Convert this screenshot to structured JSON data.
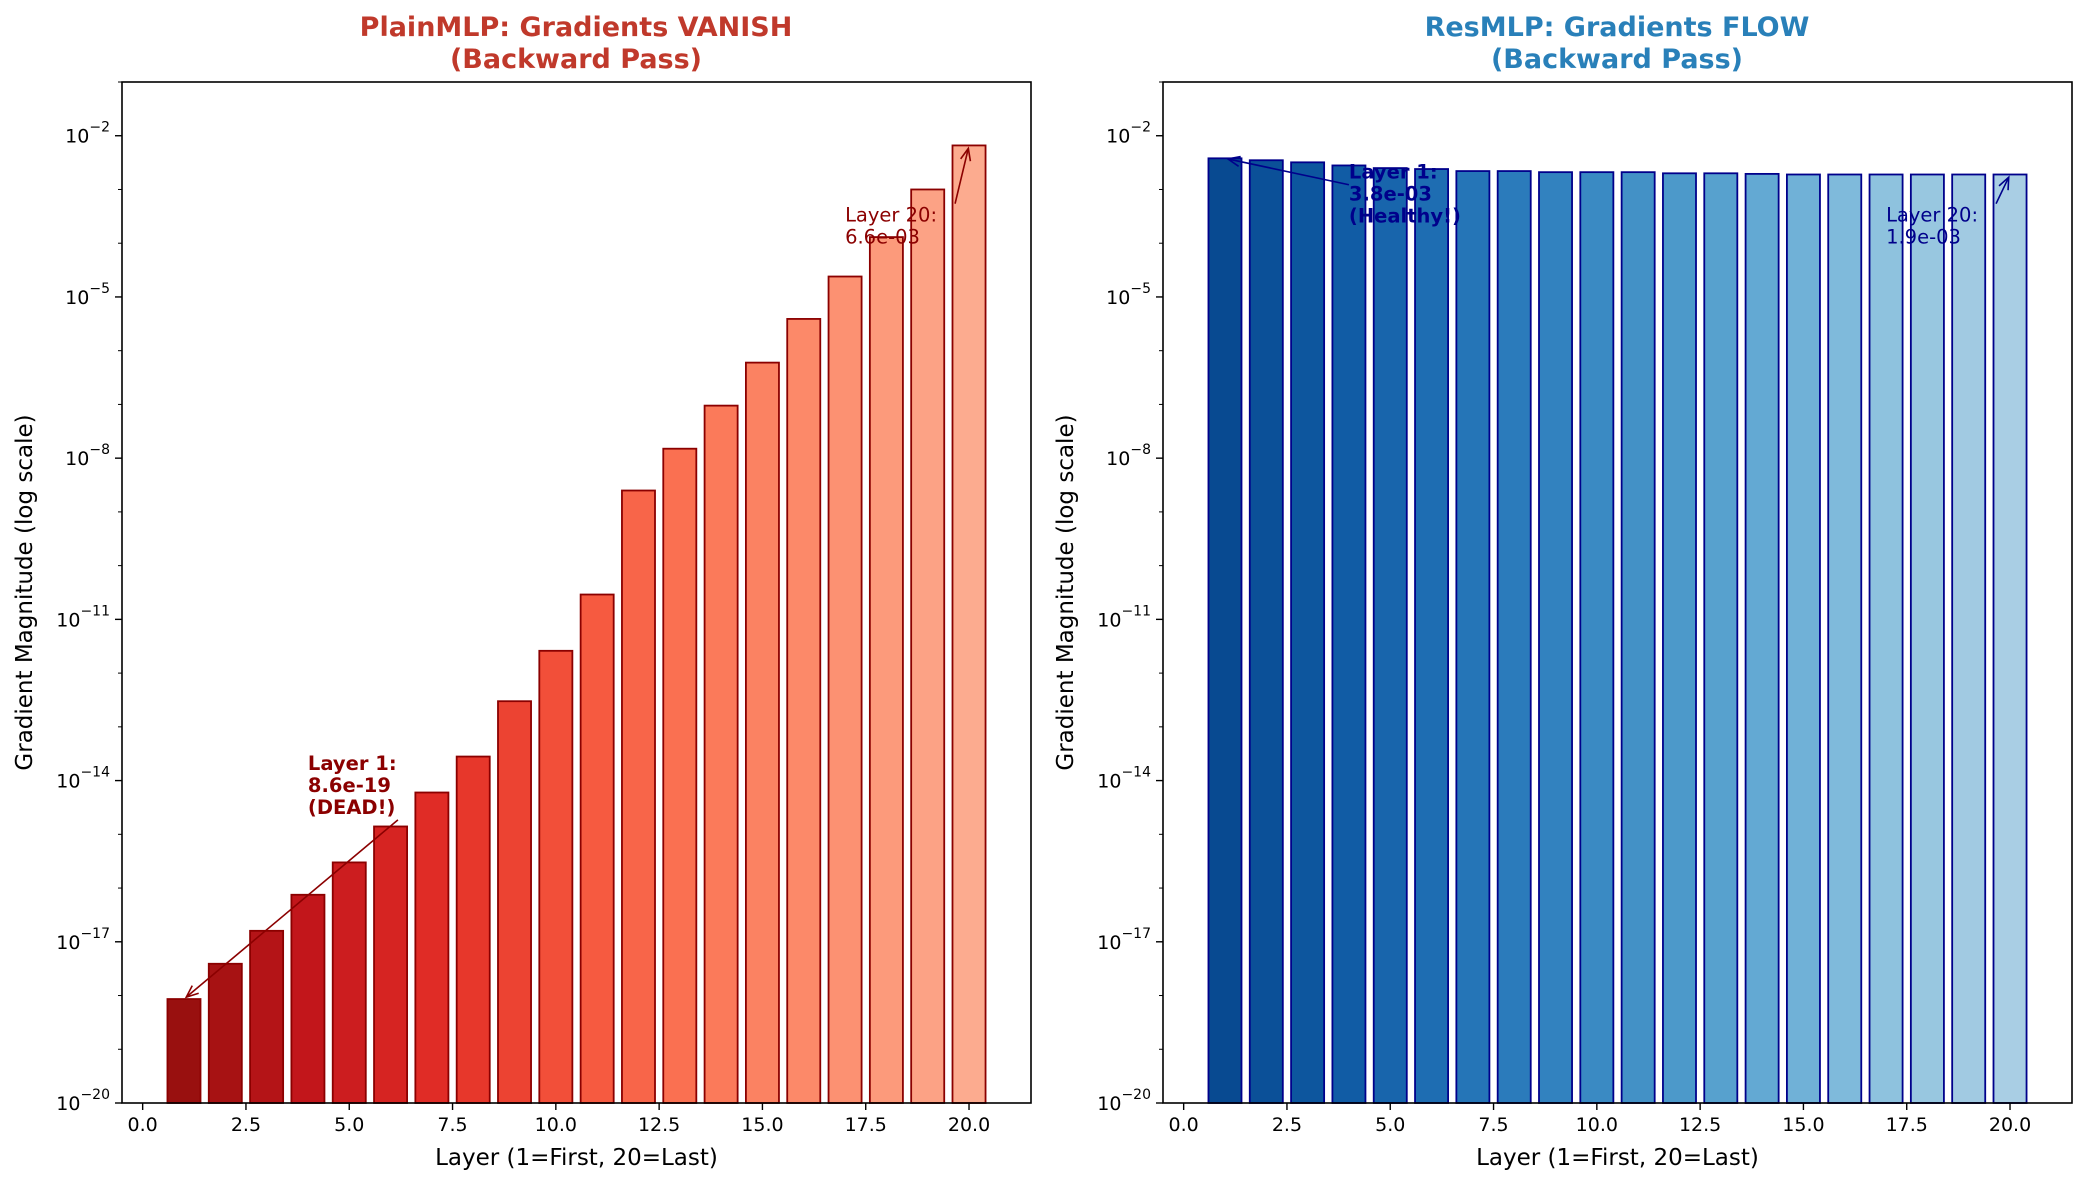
{
  "chart_data": [
    {
      "type": "bar",
      "title_line1": "PlainMLP: Gradients VANISH",
      "title_line2": "(Backward Pass)",
      "title_color": "#c0392b",
      "xlabel": "Layer (1=First, 20=Last)",
      "ylabel": "Gradient Magnitude (log scale)",
      "yscale": "log",
      "xlim": [
        -0.5,
        21.5
      ],
      "ylim_exp": [
        -20,
        -1
      ],
      "x_ticks": [
        "0.0",
        "2.5",
        "5.0",
        "7.5",
        "10.0",
        "12.5",
        "15.0",
        "17.5",
        "20.0"
      ],
      "y_tick_exponents": [
        "-20",
        "-17",
        "-14",
        "-11",
        "-8",
        "-5",
        "-2"
      ],
      "edge_color": "#8b0000",
      "palette": "reds",
      "x": [
        1,
        2,
        3,
        4,
        5,
        6,
        7,
        8,
        9,
        10,
        11,
        12,
        13,
        14,
        15,
        16,
        17,
        18,
        19,
        20
      ],
      "values": [
        8.6e-19,
        3.9e-18,
        1.6e-17,
        7.5e-17,
        3e-16,
        1.4e-15,
        6e-15,
        2.8e-14,
        3e-13,
        2.6e-12,
        2.9e-11,
        2.5e-09,
        1.5e-08,
        9.5e-08,
        6e-07,
        3.9e-06,
        2.4e-05,
        0.00013,
        0.001,
        0.0066
      ],
      "annotations": [
        {
          "lines": [
            "Layer 1:",
            "8.6e-19",
            "(DEAD!)"
          ],
          "bold": true,
          "color": "#8b0000",
          "target_layer": 1,
          "target_value": 8.6e-19,
          "text_layer": 4.0,
          "text_exp": -13.8
        },
        {
          "lines": [
            "Layer 20:",
            "6.6e-03"
          ],
          "bold": false,
          "color": "#8b0000",
          "target_layer": 20,
          "target_value": 0.0066,
          "text_layer": 17.0,
          "text_exp": -3.6
        }
      ]
    },
    {
      "type": "bar",
      "title_line1": "ResMLP: Gradients FLOW",
      "title_line2": "(Backward Pass)",
      "title_color": "#2980b9",
      "xlabel": "Layer (1=First, 20=Last)",
      "ylabel": "Gradient Magnitude (log scale)",
      "yscale": "log",
      "xlim": [
        -0.5,
        21.5
      ],
      "ylim_exp": [
        -20,
        -1
      ],
      "x_ticks": [
        "0.0",
        "2.5",
        "5.0",
        "7.5",
        "10.0",
        "12.5",
        "15.0",
        "17.5",
        "20.0"
      ],
      "y_tick_exponents": [
        "-20",
        "-17",
        "-14",
        "-11",
        "-8",
        "-5",
        "-2"
      ],
      "edge_color": "#00008b",
      "palette": "blues",
      "x": [
        1,
        2,
        3,
        4,
        5,
        6,
        7,
        8,
        9,
        10,
        11,
        12,
        13,
        14,
        15,
        16,
        17,
        18,
        19,
        20
      ],
      "values": [
        0.0038,
        0.0035,
        0.0032,
        0.0028,
        0.0025,
        0.0024,
        0.0022,
        0.0022,
        0.0021,
        0.0021,
        0.0021,
        0.002,
        0.002,
        0.00195,
        0.0019,
        0.0019,
        0.0019,
        0.0019,
        0.0019,
        0.0019
      ],
      "annotations": [
        {
          "lines": [
            "Layer 1:",
            "3.8e-03",
            "(Healthy!)"
          ],
          "bold": true,
          "color": "#00008b",
          "target_layer": 1,
          "target_value": 0.0038,
          "text_layer": 4.0,
          "text_exp": -2.8
        },
        {
          "lines": [
            "Layer 20:",
            "1.9e-03"
          ],
          "bold": false,
          "color": "#00008b",
          "target_layer": 20,
          "target_value": 0.0019,
          "text_layer": 17.0,
          "text_exp": -3.6
        }
      ]
    }
  ]
}
